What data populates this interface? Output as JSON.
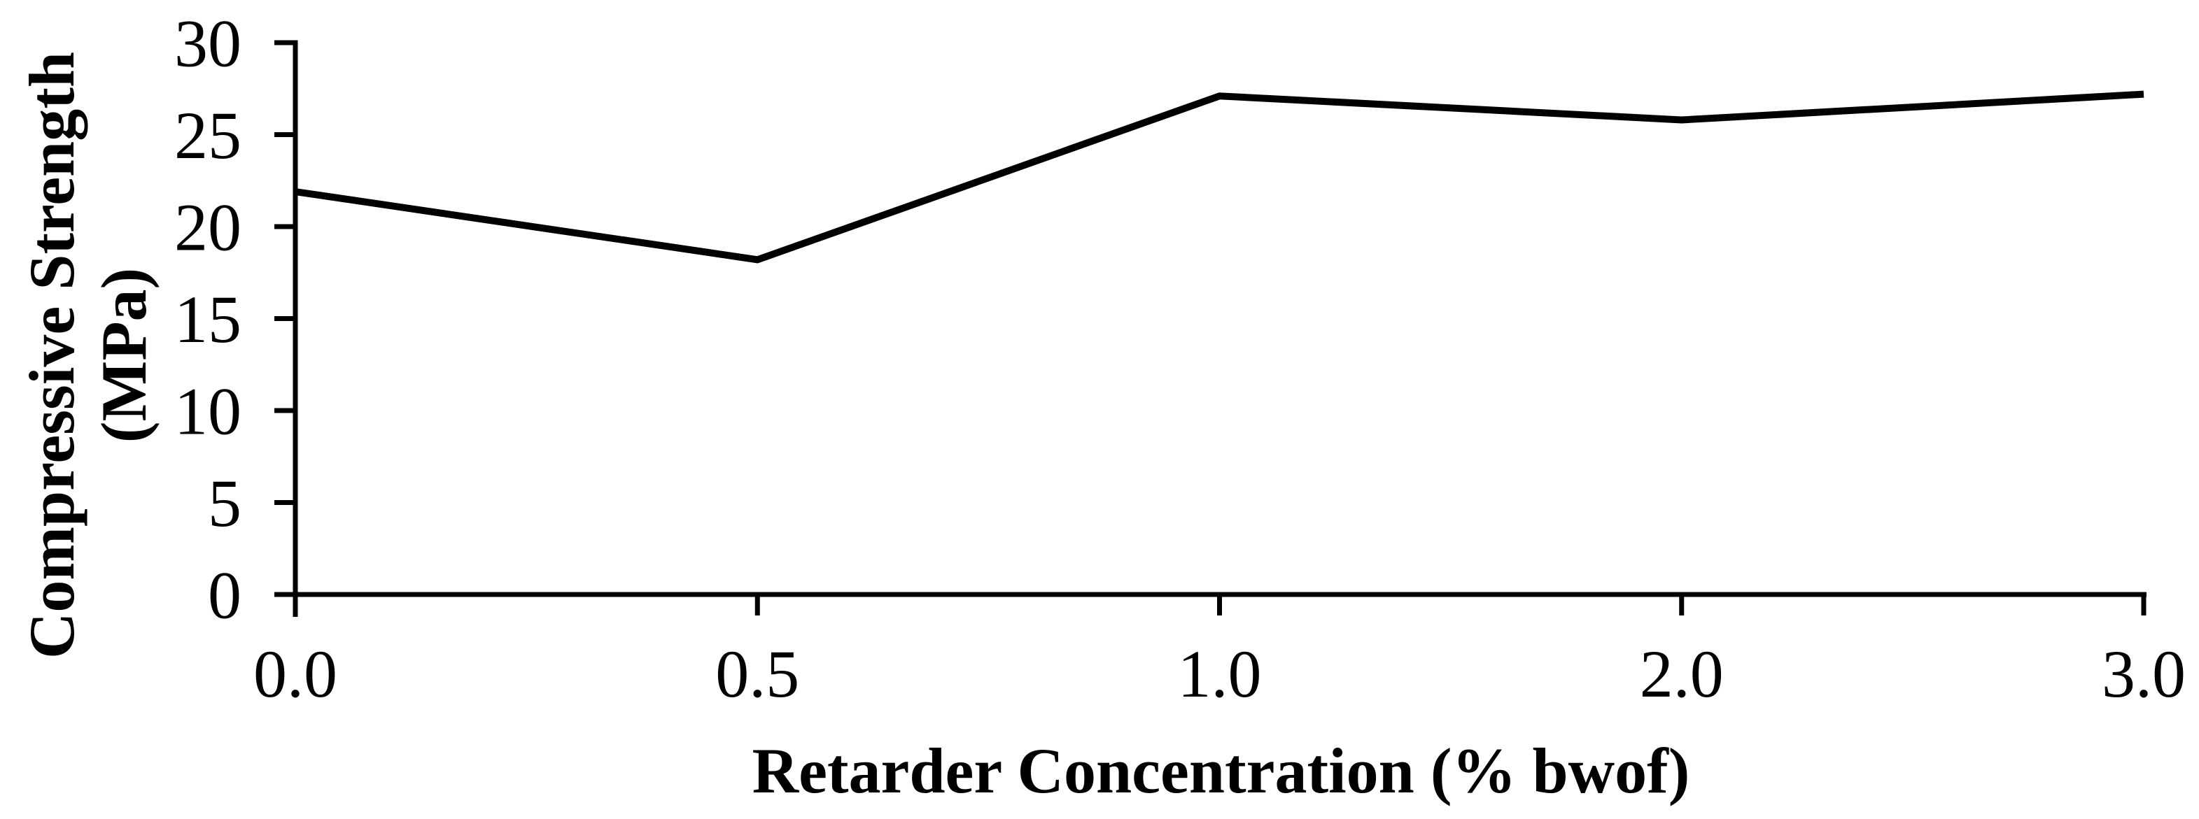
{
  "figure": {
    "background": "#ffffff"
  },
  "chart_data": {
    "type": "line",
    "title": "",
    "categories": [
      "0.0",
      "0.5",
      "1.0",
      "2.0",
      "3.0"
    ],
    "values": [
      21.9,
      18.2,
      27.1,
      25.8,
      27.2
    ],
    "series": [
      {
        "name": "Compressive Strength",
        "values": [
          21.9,
          18.2,
          27.1,
          25.8,
          27.2
        ]
      }
    ],
    "xlabel": "Retarder Concentration (% bwof)",
    "ylabel": "Compressive Strength (MPa)",
    "ylabel_lines": [
      "Compressive Strength",
      "(MPa)"
    ],
    "ylim": [
      0,
      30
    ],
    "yticks": [
      0,
      5,
      10,
      15,
      20,
      25,
      30
    ],
    "x_axis_spacing": "categorical",
    "grid": false,
    "legend": "none",
    "line_color": "#000000",
    "axis_color": "#000000",
    "text_color": "#000000"
  }
}
